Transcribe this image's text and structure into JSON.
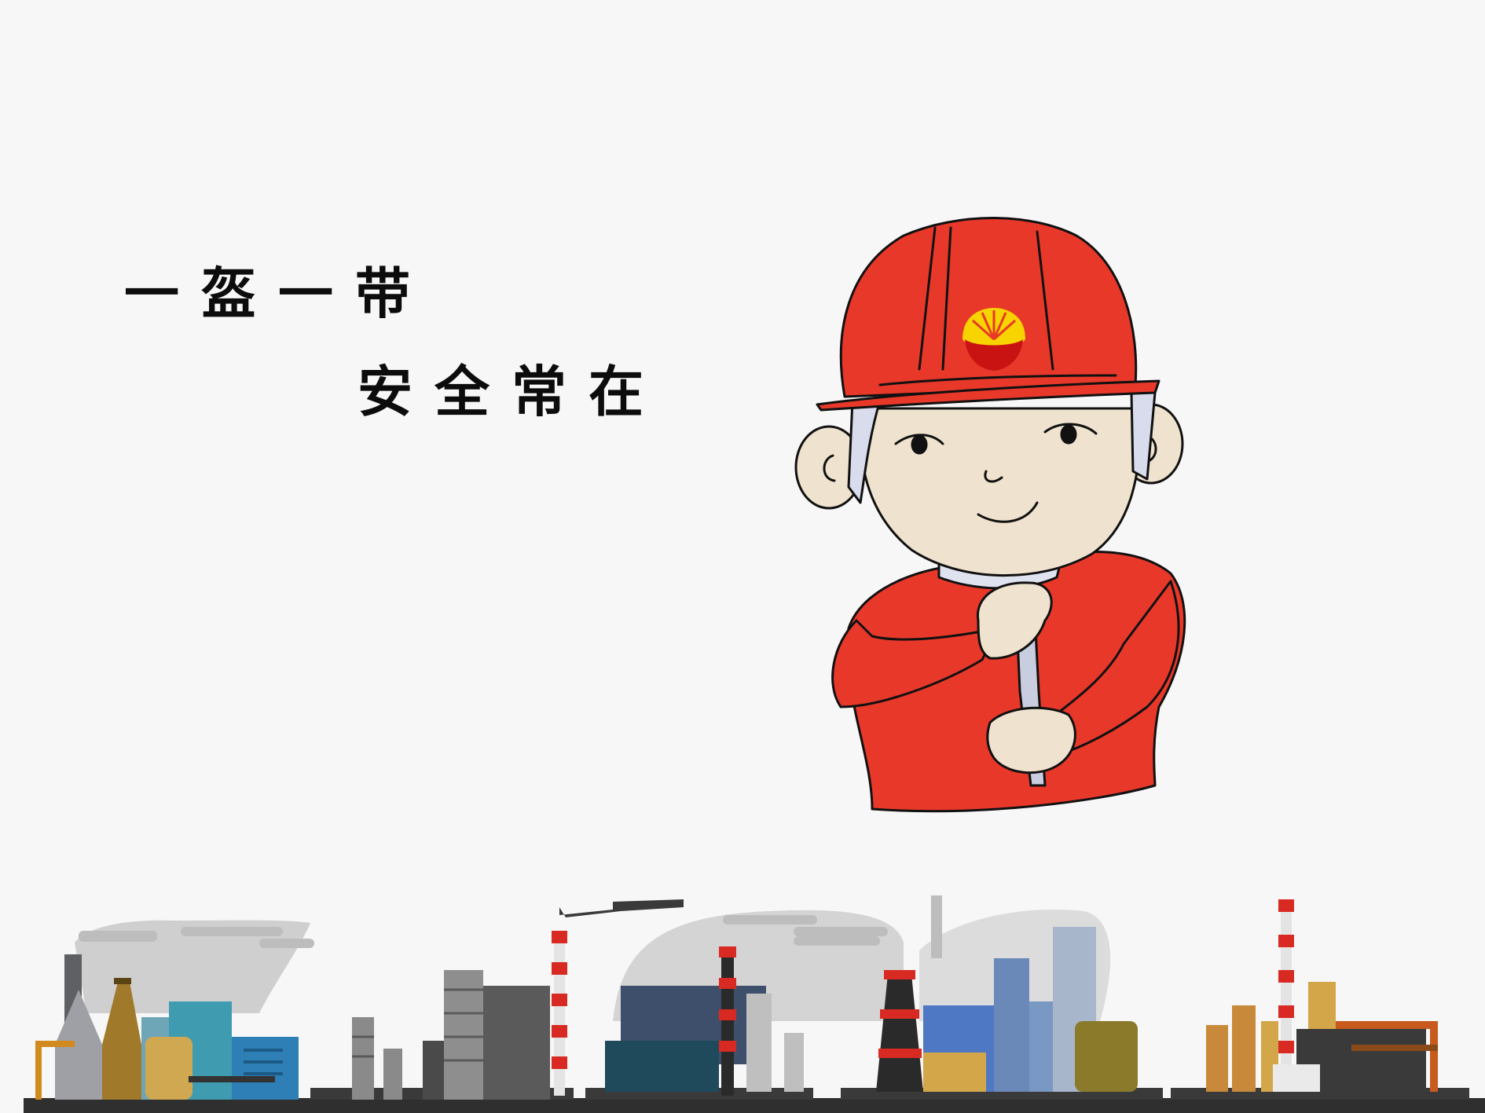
{
  "slogan": {
    "line1": "一盔一带",
    "line2": "安全常在"
  },
  "illustration": {
    "subject": "worker-in-red-helmet-and-uniform",
    "logo": "petrochina-logo-icon",
    "background": "industrial-skyline"
  },
  "colors": {
    "background": "#f7f7f7",
    "uniform_red": "#e8382a",
    "skin": "#efe3cf",
    "text": "#0c0c0c"
  }
}
